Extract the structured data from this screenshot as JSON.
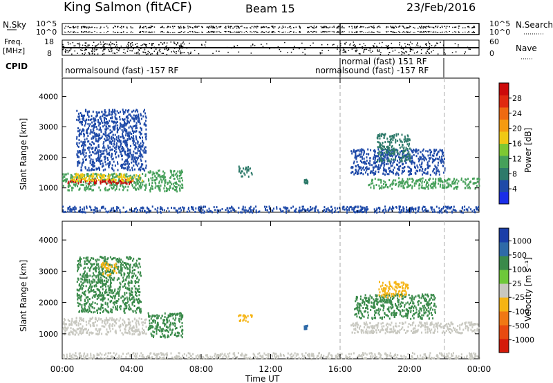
{
  "header": {
    "station": "King Salmon (fitACF)",
    "beam": "Beam 15",
    "date": "23/Feb/2016"
  },
  "top_panels": {
    "nsky_label": "N.Sky",
    "nsky_ticks": [
      "10^5",
      "10^0"
    ],
    "nsearch_label": "N.Search",
    "nsearch_ticks": [
      "10^5",
      "10^0"
    ],
    "freq_label_1": "Freq.",
    "freq_label_2": "[MHz]",
    "freq_ticks": [
      "18",
      "8"
    ],
    "nave_label": "Nave",
    "nave_ticks": [
      "60",
      "0"
    ],
    "cpid_label": "CPID",
    "cpid_segments": [
      {
        "label": "normalsound (fast) -157 RF",
        "start_hour": 0,
        "end_hour": 16
      },
      {
        "label": "normal (fast) 151 RF",
        "start_hour": 16,
        "end_hour": 22
      },
      {
        "label": "normalsound (fast) -157 RF",
        "start_hour": 16,
        "end_hour": 22
      }
    ]
  },
  "x_axis": {
    "label": "Time UT",
    "ticks": [
      "00:00",
      "04:00",
      "08:00",
      "12:00",
      "16:00",
      "20:00",
      "00:00"
    ],
    "dashed_markers_hours": [
      16,
      22
    ]
  },
  "chart_data": [
    {
      "type": "heatmap",
      "name": "power",
      "ylabel": "Slant Range [km]",
      "yticks": [
        "1000",
        "2000",
        "3000",
        "4000"
      ],
      "ylim": [
        200,
        4600
      ],
      "xlim_hours": [
        0,
        24
      ],
      "colorbar_label": "Power [dB]",
      "colorbar_ticks": [
        "4",
        "8",
        "12",
        "16",
        "20",
        "24",
        "28"
      ],
      "colorbar_colors": [
        "#1a2ee8",
        "#1f4aa8",
        "#2e7a6a",
        "#46a05a",
        "#7ec832",
        "#f0c814",
        "#f59a10",
        "#ee6a12",
        "#e02a10",
        "#cc0a0a"
      ],
      "scatter_regions": [
        {
          "h0": 0.0,
          "h1": 4.8,
          "r0": 950,
          "r1": 1500,
          "level": 8
        },
        {
          "h0": 0.3,
          "h1": 4.2,
          "r0": 1150,
          "r1": 1300,
          "level": 26
        },
        {
          "h0": 0.5,
          "h1": 4.6,
          "r0": 1250,
          "r1": 1500,
          "level": 16
        },
        {
          "h0": 0.8,
          "h1": 4.8,
          "r0": 1600,
          "r1": 3600,
          "level": 4
        },
        {
          "h0": 4.9,
          "h1": 6.9,
          "r0": 900,
          "r1": 1600,
          "level": 10
        },
        {
          "h0": 10.1,
          "h1": 10.9,
          "r0": 1400,
          "r1": 1750,
          "level": 6
        },
        {
          "h0": 13.9,
          "h1": 14.1,
          "r0": 1180,
          "r1": 1300,
          "level": 6
        },
        {
          "h0": 16.6,
          "h1": 22.0,
          "r0": 1450,
          "r1": 2300,
          "level": 4
        },
        {
          "h0": 17.6,
          "h1": 24.0,
          "r0": 1000,
          "r1": 1350,
          "level": 8
        },
        {
          "h0": 18.1,
          "h1": 20.0,
          "r0": 1900,
          "r1": 2800,
          "level": 6
        },
        {
          "h0": 0.0,
          "h1": 24.0,
          "r0": 220,
          "r1": 420,
          "level": 4
        }
      ]
    },
    {
      "type": "heatmap",
      "name": "velocity",
      "ylabel": "Slant Range [km]",
      "yticks": [
        "1000",
        "2000",
        "3000",
        "4000"
      ],
      "ylim": [
        200,
        4600
      ],
      "xlim_hours": [
        0,
        24
      ],
      "colorbar_label": "Velocity [m s⁻¹]",
      "colorbar_ticks": [
        "1000",
        "500",
        "100",
        "25",
        "-25",
        "-100",
        "-500",
        "-1000"
      ],
      "colorbar_colors": [
        "#1a3ea8",
        "#2e6aa8",
        "#3a8a4a",
        "#6ec83a",
        "#c8c8c0",
        "#f5b414",
        "#f07814",
        "#e84a10",
        "#d41a0a"
      ],
      "scatter_regions": [
        {
          "h0": 0.0,
          "h1": 4.8,
          "r0": 1000,
          "r1": 1550,
          "level": 25
        },
        {
          "h0": 0.8,
          "h1": 4.5,
          "r0": 1700,
          "r1": 3500,
          "level": 100
        },
        {
          "h0": 2.2,
          "h1": 3.1,
          "r0": 2900,
          "r1": 3300,
          "level": -100
        },
        {
          "h0": 4.9,
          "h1": 6.9,
          "r0": 900,
          "r1": 1700,
          "level": 100
        },
        {
          "h0": 10.1,
          "h1": 10.9,
          "r0": 1400,
          "r1": 1650,
          "level": -100
        },
        {
          "h0": 13.9,
          "h1": 14.1,
          "r0": 1180,
          "r1": 1300,
          "level": 500
        },
        {
          "h0": 16.6,
          "h1": 24.0,
          "r0": 1050,
          "r1": 1400,
          "level": 25
        },
        {
          "h0": 16.8,
          "h1": 21.5,
          "r0": 1500,
          "r1": 2300,
          "level": 100
        },
        {
          "h0": 18.2,
          "h1": 19.9,
          "r0": 2200,
          "r1": 2700,
          "level": -100
        },
        {
          "h0": 0.0,
          "h1": 24.0,
          "r0": 220,
          "r1": 420,
          "level": -25
        }
      ]
    }
  ]
}
